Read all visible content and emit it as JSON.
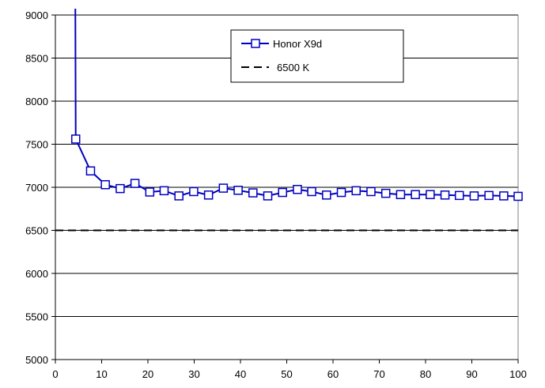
{
  "chart_data": {
    "type": "line",
    "title": "",
    "xlabel": "",
    "ylabel": "",
    "xlim": [
      0,
      100
    ],
    "ylim": [
      5000,
      9000
    ],
    "xticks": [
      0,
      10,
      20,
      30,
      40,
      50,
      60,
      70,
      80,
      90,
      100
    ],
    "yticks": [
      5000,
      5500,
      6000,
      6500,
      7000,
      7500,
      8000,
      8500,
      9000
    ],
    "grid": true,
    "legend_position": "top-right",
    "series": [
      {
        "name": "Honor X9d",
        "color": "#0000c0",
        "marker": "square",
        "x": [
          4.4,
          7.6,
          10.8,
          14.0,
          17.2,
          20.4,
          23.5,
          26.7,
          29.9,
          33.1,
          36.3,
          39.5,
          42.7,
          45.9,
          49.1,
          52.3,
          55.4,
          58.6,
          61.8,
          65.0,
          68.2,
          71.4,
          74.6,
          77.8,
          81.0,
          84.2,
          87.3,
          90.5,
          93.7,
          96.9,
          100
        ],
        "y": [
          7560,
          7190,
          7030,
          6985,
          7045,
          6945,
          6960,
          6900,
          6950,
          6910,
          6990,
          6965,
          6935,
          6900,
          6940,
          6975,
          6950,
          6910,
          6940,
          6960,
          6950,
          6930,
          6915,
          6915,
          6915,
          6910,
          6905,
          6900,
          6905,
          6900,
          6895
        ],
        "start_above_range": true
      },
      {
        "name": "6500 K",
        "color": "#000000",
        "style": "dashed",
        "x": [
          0,
          100
        ],
        "y": [
          6500,
          6500
        ]
      }
    ]
  }
}
